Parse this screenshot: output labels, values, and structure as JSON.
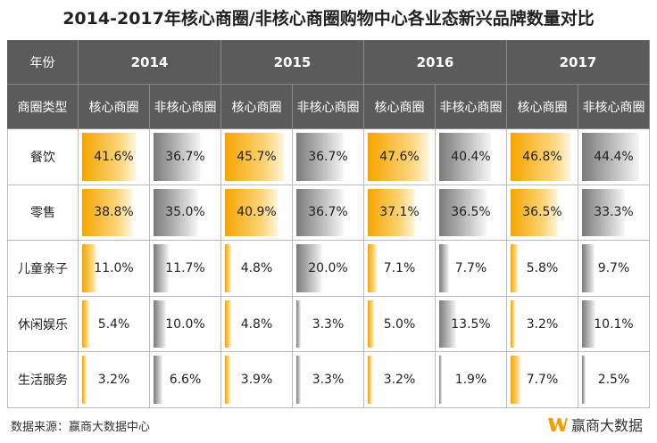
{
  "title": "2014-2017年核心商圈/非核心商圈购物中心各业态新兴品牌数量对比",
  "table": {
    "year_label": "年份",
    "years": [
      "2014",
      "2015",
      "2016",
      "2017"
    ],
    "type_label": "商圈类型",
    "subheaders": [
      "核心商圈",
      "非核心商圈",
      "核心商圈",
      "非核心商圈",
      "核心商圈",
      "非核心商圈",
      "核心商圈",
      "非核心商圈"
    ],
    "rows": [
      {
        "label": "餐饮",
        "cells": [
          {
            "value": 41.6,
            "label": "41.6%"
          },
          {
            "value": 36.7,
            "label": "36.7%"
          },
          {
            "value": 45.7,
            "label": "45.7%"
          },
          {
            "value": 36.7,
            "label": "36.7%"
          },
          {
            "value": 47.6,
            "label": "47.6%"
          },
          {
            "value": 40.4,
            "label": "40.4%"
          },
          {
            "value": 46.8,
            "label": "46.8%"
          },
          {
            "value": 44.4,
            "label": "44.4%"
          }
        ]
      },
      {
        "label": "零售",
        "cells": [
          {
            "value": 38.8,
            "label": "38.8%"
          },
          {
            "value": 35.0,
            "label": "35.0%"
          },
          {
            "value": 40.9,
            "label": "40.9%"
          },
          {
            "value": 36.7,
            "label": "36.7%"
          },
          {
            "value": 37.1,
            "label": "37.1%"
          },
          {
            "value": 36.5,
            "label": "36.5%"
          },
          {
            "value": 36.5,
            "label": "36.5%"
          },
          {
            "value": 33.3,
            "label": "33.3%"
          }
        ]
      },
      {
        "label": "儿童亲子",
        "cells": [
          {
            "value": 11.0,
            "label": "11.0%"
          },
          {
            "value": 11.7,
            "label": "11.7%"
          },
          {
            "value": 4.8,
            "label": "4.8%"
          },
          {
            "value": 20.0,
            "label": "20.0%"
          },
          {
            "value": 7.1,
            "label": "7.1%"
          },
          {
            "value": 7.7,
            "label": "7.7%"
          },
          {
            "value": 5.8,
            "label": "5.8%"
          },
          {
            "value": 9.7,
            "label": "9.7%"
          }
        ]
      },
      {
        "label": "休闲娱乐",
        "cells": [
          {
            "value": 5.4,
            "label": "5.4%"
          },
          {
            "value": 10.0,
            "label": "10.0%"
          },
          {
            "value": 4.8,
            "label": "4.8%"
          },
          {
            "value": 3.3,
            "label": "3.3%"
          },
          {
            "value": 5.0,
            "label": "5.0%"
          },
          {
            "value": 13.5,
            "label": "13.5%"
          },
          {
            "value": 3.2,
            "label": "3.2%"
          },
          {
            "value": 10.1,
            "label": "10.1%"
          }
        ]
      },
      {
        "label": "生活服务",
        "cells": [
          {
            "value": 3.2,
            "label": "3.2%"
          },
          {
            "value": 6.6,
            "label": "6.6%"
          },
          {
            "value": 3.9,
            "label": "3.9%"
          },
          {
            "value": 3.3,
            "label": "3.3%"
          },
          {
            "value": 3.2,
            "label": "3.2%"
          },
          {
            "value": 1.9,
            "label": "1.9%"
          },
          {
            "value": 7.7,
            "label": "7.7%"
          },
          {
            "value": 2.5,
            "label": "2.5%"
          }
        ]
      }
    ]
  },
  "footer": {
    "source": "数据来源：赢商大数据中心",
    "logo": "赢商大数据"
  }
}
